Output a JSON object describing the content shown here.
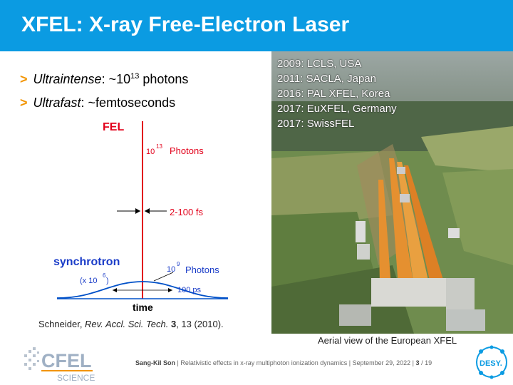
{
  "title": "XFEL: X-ray Free-Electron Laser",
  "bullets": [
    {
      "marker": ">",
      "label": "Ultraintense",
      "rest_before": ": ~10",
      "sup": "13",
      "rest_after": " photons"
    },
    {
      "marker": ">",
      "label": "Ultrafast",
      "rest_before": ": ~femtoseconds",
      "sup": "",
      "rest_after": ""
    }
  ],
  "figure": {
    "fel_label": "FEL",
    "fel_photons_base": "10",
    "fel_photons_exp": "13",
    "fel_photons_unit": "Photons",
    "pulse_width": "2-100 fs",
    "sync_label": "synchrotron",
    "sync_scale_open": "(x 10",
    "sync_scale_exp": "6",
    "sync_scale_close": ")",
    "sync_photons_base": "10",
    "sync_photons_exp": "9",
    "sync_photons_unit": "Photons",
    "sync_width": "100 ps",
    "time_label": "time",
    "colors": {
      "fel": "#e2001a",
      "synchrotron": "#0050c8",
      "label_blue": "#1a3cc8"
    }
  },
  "citation": {
    "author": "Schneider, ",
    "journal": "Rev. Accl. Sci. Tech.",
    "volume": "3",
    "rest": ", 13 (2010)."
  },
  "photo": {
    "years": [
      "2009: LCLS, USA",
      "2011: SACLA, Japan",
      "2016: PAL XFEL, Korea",
      "2017: EuXFEL, Germany",
      "2017: SwissFEL"
    ],
    "caption": "Aerial view of the European XFEL"
  },
  "footer": {
    "author": "Sang-Kil Son",
    "text": "| Relativistic effects in x-ray multiphoton ionization dynamics | September 29, 2022 |",
    "page": "3",
    "total": "/ 19"
  },
  "logos": {
    "cfel_main": "CFEL",
    "cfel_sub": "SCIENCE",
    "desy": "DESY."
  }
}
